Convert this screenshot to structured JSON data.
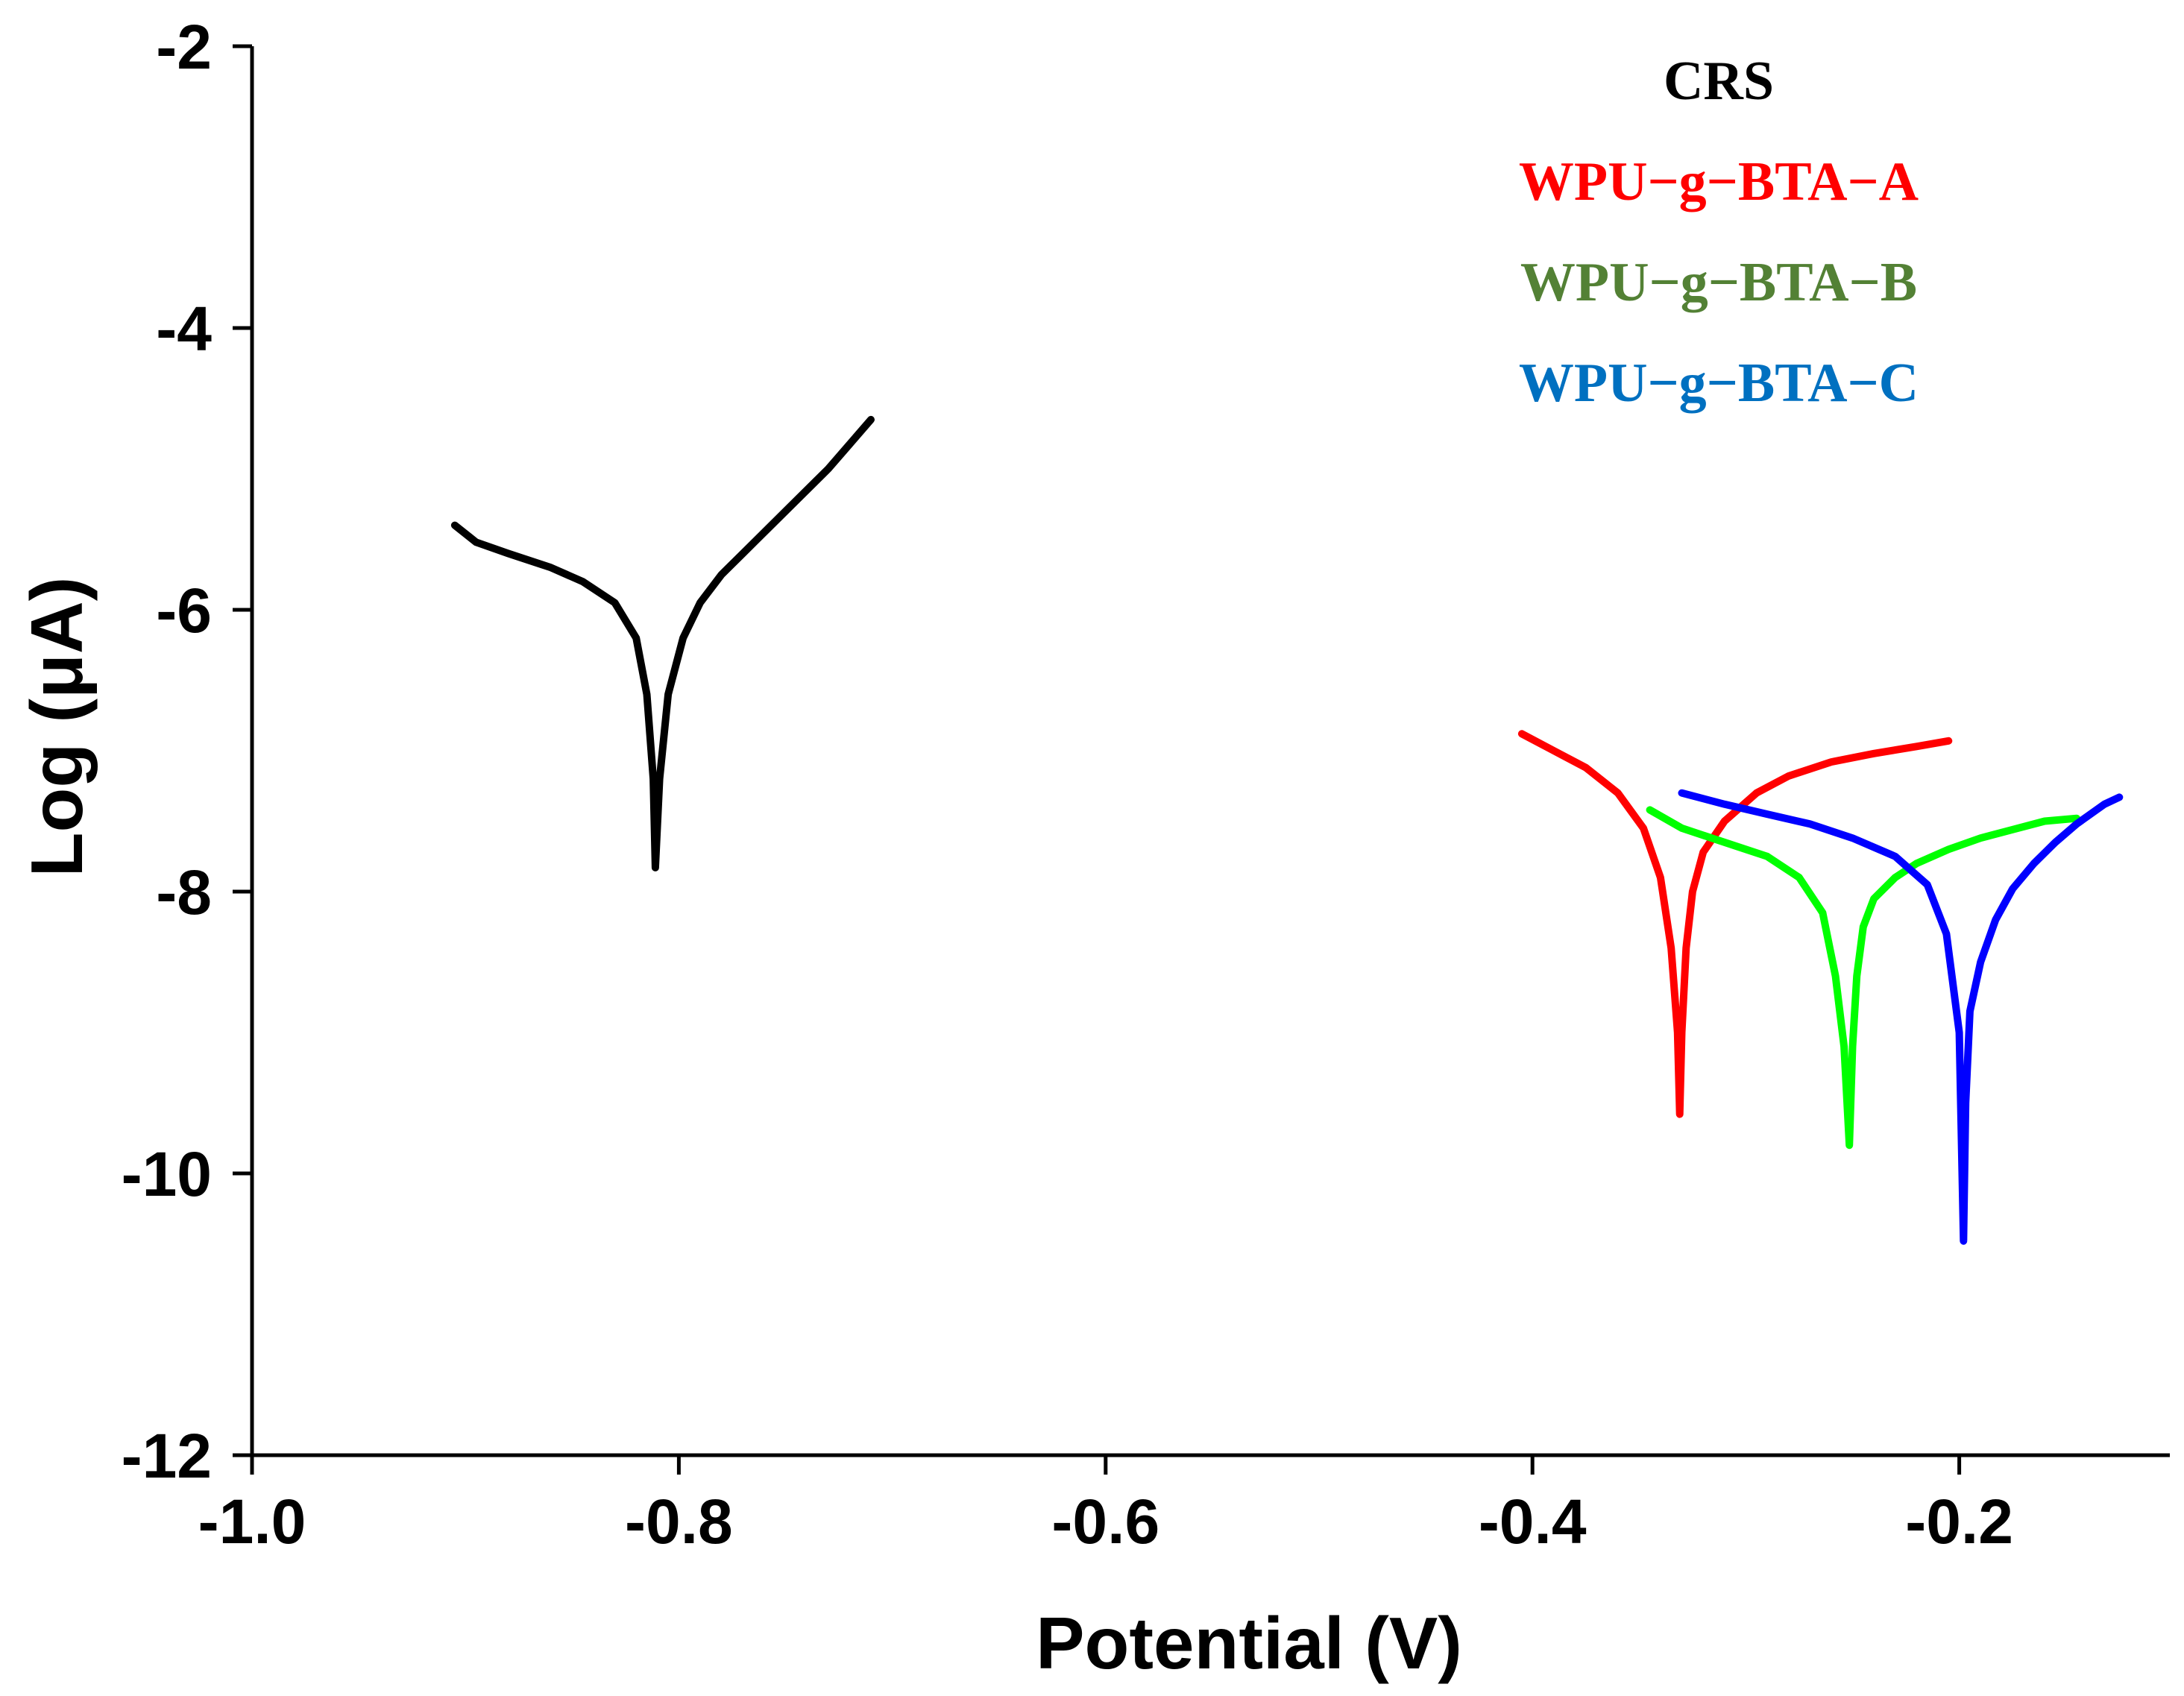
{
  "chart_data": {
    "type": "line",
    "title": "",
    "xlabel": "Potential (V)",
    "ylabel": "Log (μA)",
    "xlim": [
      -1.0,
      -0.1
    ],
    "ylim": [
      -12,
      -2
    ],
    "xticks": [
      -1.0,
      -0.8,
      -0.6,
      -0.4,
      -0.2
    ],
    "xtick_labels": [
      "-1.0",
      "-0.8",
      "-0.6",
      "-0.4",
      "-0.2"
    ],
    "yticks": [
      -12,
      -10,
      -8,
      -6,
      -4,
      -2
    ],
    "ytick_labels": [
      "-12",
      "-10",
      "-8",
      "-6",
      "-4",
      "-2"
    ],
    "grid": false,
    "legend_position": "top-right",
    "series": [
      {
        "name": "CRS",
        "color": "#000000",
        "legend_color": "#000000",
        "x": [
          -0.905,
          -0.895,
          -0.88,
          -0.86,
          -0.845,
          -0.83,
          -0.82,
          -0.815,
          -0.812,
          -0.811,
          -0.809,
          -0.805,
          -0.798,
          -0.79,
          -0.78,
          -0.77,
          -0.75,
          -0.73,
          -0.71
        ],
        "y": [
          -5.4,
          -5.52,
          -5.6,
          -5.7,
          -5.8,
          -5.95,
          -6.2,
          -6.6,
          -7.2,
          -7.83,
          -7.2,
          -6.6,
          -6.2,
          -5.95,
          -5.75,
          -5.6,
          -5.3,
          -5.0,
          -4.65
        ]
      },
      {
        "name": "WPU−g−BTA−A",
        "color": "#ff0000",
        "legend_color": "#ff0000",
        "x": [
          -0.405,
          -0.39,
          -0.375,
          -0.36,
          -0.348,
          -0.34,
          -0.335,
          -0.332,
          -0.331,
          -0.33,
          -0.328,
          -0.325,
          -0.32,
          -0.31,
          -0.295,
          -0.28,
          -0.26,
          -0.24,
          -0.22,
          -0.205
        ],
        "y": [
          -6.88,
          -7.0,
          -7.12,
          -7.3,
          -7.55,
          -7.9,
          -8.4,
          -9.0,
          -9.58,
          -9.0,
          -8.4,
          -8.0,
          -7.72,
          -7.5,
          -7.3,
          -7.18,
          -7.08,
          -7.02,
          -6.97,
          -6.93
        ]
      },
      {
        "name": "WPU−g−BTA−B",
        "color": "#00ff00",
        "legend_color": "#538135",
        "x": [
          -0.345,
          -0.33,
          -0.31,
          -0.29,
          -0.275,
          -0.264,
          -0.258,
          -0.254,
          -0.2515,
          -0.25,
          -0.248,
          -0.245,
          -0.24,
          -0.23,
          -0.22,
          -0.205,
          -0.19,
          -0.175,
          -0.16,
          -0.145
        ],
        "y": [
          -7.42,
          -7.55,
          -7.65,
          -7.75,
          -7.9,
          -8.15,
          -8.6,
          -9.1,
          -9.8,
          -9.1,
          -8.6,
          -8.25,
          -8.05,
          -7.9,
          -7.8,
          -7.7,
          -7.62,
          -7.56,
          -7.5,
          -7.48
        ]
      },
      {
        "name": "WPU−g−BTA−C",
        "color": "#0000ff",
        "legend_color": "#0070c0",
        "x": [
          -0.33,
          -0.31,
          -0.29,
          -0.27,
          -0.25,
          -0.23,
          -0.215,
          -0.206,
          -0.2,
          -0.198,
          -0.197,
          -0.195,
          -0.19,
          -0.183,
          -0.175,
          -0.165,
          -0.155,
          -0.145,
          -0.132,
          -0.125
        ],
        "y": [
          -7.3,
          -7.38,
          -7.45,
          -7.52,
          -7.62,
          -7.75,
          -7.95,
          -8.3,
          -9.0,
          -10.48,
          -9.5,
          -8.85,
          -8.5,
          -8.2,
          -7.98,
          -7.8,
          -7.65,
          -7.52,
          -7.38,
          -7.33
        ]
      }
    ]
  }
}
